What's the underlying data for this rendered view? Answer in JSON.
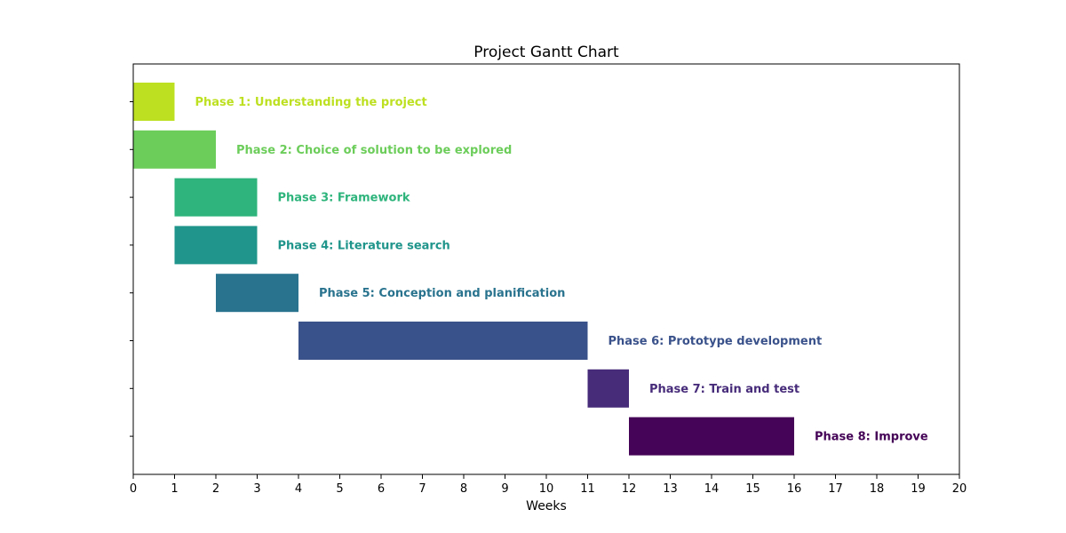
{
  "chart_data": {
    "type": "bar",
    "orientation": "horizontal",
    "title": "Project Gantt Chart",
    "xlabel": "Weeks",
    "ylabel": "",
    "xlim": [
      0,
      20
    ],
    "x_ticks": [
      0,
      1,
      2,
      3,
      4,
      5,
      6,
      7,
      8,
      9,
      10,
      11,
      12,
      13,
      14,
      15,
      16,
      17,
      18,
      19,
      20
    ],
    "grid": false,
    "legend": "none",
    "tasks": [
      {
        "label": "Phase 1: Understanding the project",
        "start": 0,
        "duration": 1,
        "color": "#bde021"
      },
      {
        "label": "Phase 2: Choice of solution to be explored",
        "start": 0,
        "duration": 2,
        "color": "#6ccd5a"
      },
      {
        "label": "Phase 3: Framework",
        "start": 1,
        "duration": 2,
        "color": "#2eb47c"
      },
      {
        "label": "Phase 4: Literature search",
        "start": 1,
        "duration": 2,
        "color": "#20958b"
      },
      {
        "label": "Phase 5: Conception and planification",
        "start": 2,
        "duration": 2,
        "color": "#29738e"
      },
      {
        "label": "Phase 6: Prototype development",
        "start": 4,
        "duration": 7,
        "color": "#3a528b"
      },
      {
        "label": "Phase 7: Train and test",
        "start": 11,
        "duration": 1,
        "color": "#472c7a"
      },
      {
        "label": "Phase 8: Improve",
        "start": 12,
        "duration": 4,
        "color": "#450457"
      }
    ]
  }
}
